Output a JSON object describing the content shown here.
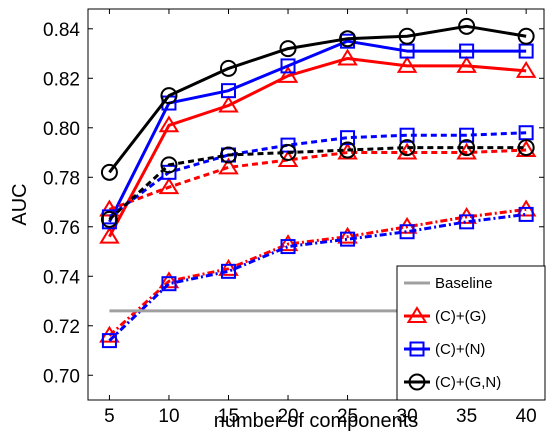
{
  "chart_data": {
    "type": "line",
    "xlabel": "number of components",
    "ylabel": "AUC",
    "x": [
      5,
      10,
      15,
      20,
      25,
      30,
      35,
      40
    ],
    "xlim": [
      3.2,
      41.5
    ],
    "ylim": [
      0.69,
      0.848
    ],
    "xticks": [
      "5",
      "10",
      "15",
      "20",
      "25",
      "30",
      "35",
      "40"
    ],
    "yticks": [
      "0.70",
      "0.72",
      "0.74",
      "0.76",
      "0.78",
      "0.80",
      "0.82",
      "0.84"
    ],
    "legend_position": "bottom-right",
    "baseline": {
      "name": "Baseline",
      "value": 0.726,
      "color": "#a0a0a0"
    },
    "series": [
      {
        "name": "(C)+(G)",
        "marker": "triangle",
        "color": "#ff0000",
        "line": "solid",
        "values": [
          0.756,
          0.801,
          0.809,
          0.821,
          0.828,
          0.825,
          0.825,
          0.823
        ]
      },
      {
        "name": "(C)+(N)",
        "marker": "square",
        "color": "#0000ff",
        "line": "solid",
        "values": [
          0.762,
          0.81,
          0.815,
          0.825,
          0.835,
          0.831,
          0.831,
          0.831
        ]
      },
      {
        "name": "(C)+(G,N)",
        "marker": "circle",
        "color": "#000000",
        "line": "solid",
        "values": [
          0.782,
          0.813,
          0.824,
          0.832,
          0.836,
          0.837,
          0.841,
          0.837
        ]
      },
      {
        "marker": "triangle",
        "color": "#ff0000",
        "line": "dashed",
        "values": [
          0.767,
          0.776,
          0.784,
          0.787,
          0.79,
          0.79,
          0.79,
          0.791
        ]
      },
      {
        "marker": "square",
        "color": "#0000ff",
        "line": "dashed",
        "values": [
          0.764,
          0.782,
          0.789,
          0.793,
          0.796,
          0.797,
          0.797,
          0.798
        ]
      },
      {
        "marker": "circle",
        "color": "#000000",
        "line": "dashed",
        "values": [
          0.763,
          0.785,
          0.789,
          0.79,
          0.791,
          0.792,
          0.792,
          0.792
        ]
      },
      {
        "marker": "triangle",
        "color": "#ff0000",
        "line": "dashdot",
        "values": [
          0.716,
          0.738,
          0.743,
          0.753,
          0.756,
          0.76,
          0.764,
          0.767
        ]
      },
      {
        "marker": "square",
        "color": "#0000ff",
        "line": "dashdot",
        "values": [
          0.714,
          0.737,
          0.742,
          0.752,
          0.755,
          0.758,
          0.762,
          0.765
        ]
      }
    ]
  }
}
